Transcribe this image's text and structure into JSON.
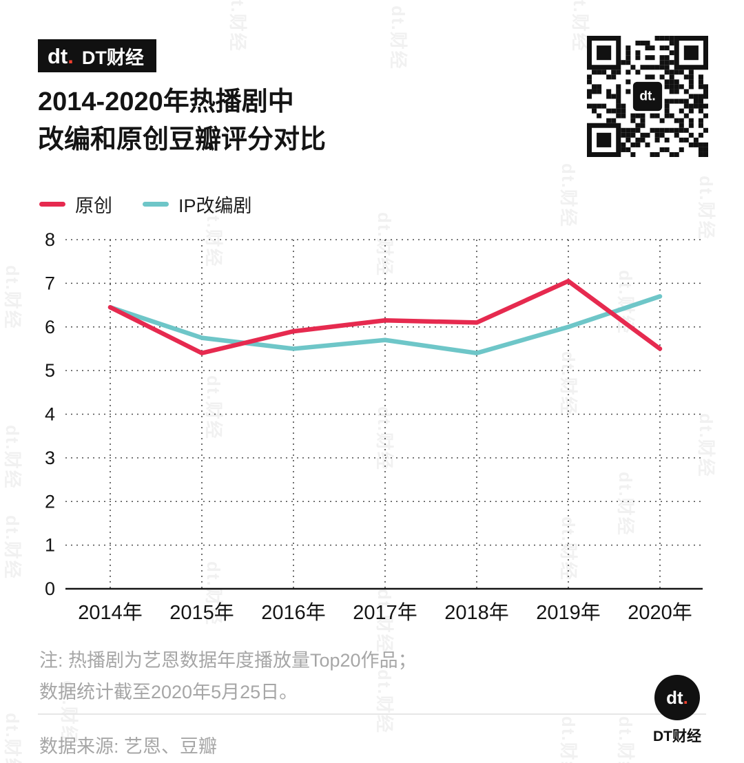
{
  "header": {
    "logo_mark": "dt",
    "logo_dot": ".",
    "logo_text": "DT财经"
  },
  "title": {
    "line1": "2014-2020年热播剧中",
    "line2": "改编和原创豆瓣评分对比"
  },
  "chart_data": {
    "type": "line",
    "title": "2014-2020年热播剧中改编和原创豆瓣评分对比",
    "categories": [
      "2014年",
      "2015年",
      "2016年",
      "2017年",
      "2018年",
      "2019年",
      "2020年"
    ],
    "series": [
      {
        "name": "原创",
        "color": "#e62a4f",
        "values": [
          6.45,
          5.4,
          5.9,
          6.15,
          6.1,
          7.05,
          5.5
        ]
      },
      {
        "name": "IP改编剧",
        "color": "#6ec6c8",
        "values": [
          6.45,
          5.75,
          5.5,
          5.7,
          5.4,
          6.0,
          6.7
        ]
      }
    ],
    "ylim": [
      0,
      8
    ],
    "yticks": [
      0,
      1,
      2,
      3,
      4,
      5,
      6,
      7,
      8
    ],
    "grid": "dotted",
    "legend_position": "top-left"
  },
  "footnote": {
    "line1": "注: 热播剧为艺恩数据年度播放量Top20作品；",
    "line2": "数据统计截至2020年5月25日。"
  },
  "footer": {
    "source": "数据来源: 艺恩、豆瓣",
    "logo_mark": "dt",
    "logo_dot": ".",
    "logo_text": "DT财经"
  },
  "watermark": {
    "text": "dt.财经"
  }
}
